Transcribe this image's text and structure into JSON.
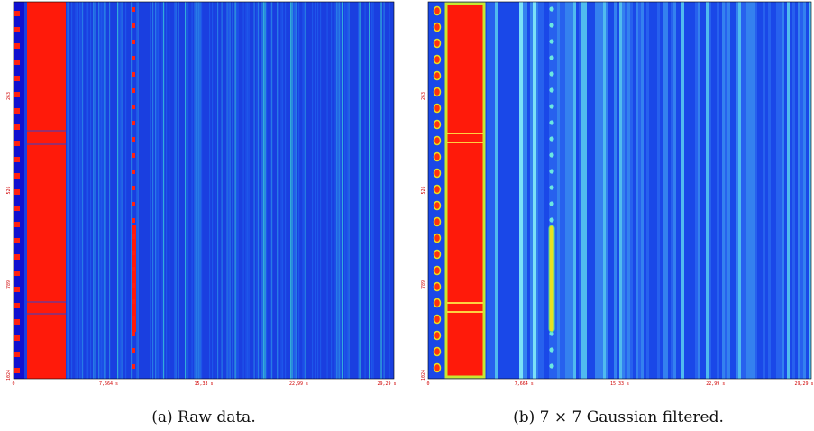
{
  "panels": [
    {
      "caption": "(a) Raw data.",
      "y_tick_labels": [
        "263",
        "526",
        "789",
        "1024"
      ],
      "x_tick_labels": [
        "0",
        "7,664 s",
        "15,33 s",
        "22,99 s",
        "29,29 s"
      ]
    },
    {
      "caption": "(b) 7 × 7 Gaussian filtered.",
      "y_tick_labels": [
        "263",
        "526",
        "789",
        "1024"
      ],
      "x_tick_labels": [
        "0",
        "7,664 s",
        "15,33 s",
        "22,99 s",
        "29,29 s"
      ]
    }
  ]
}
